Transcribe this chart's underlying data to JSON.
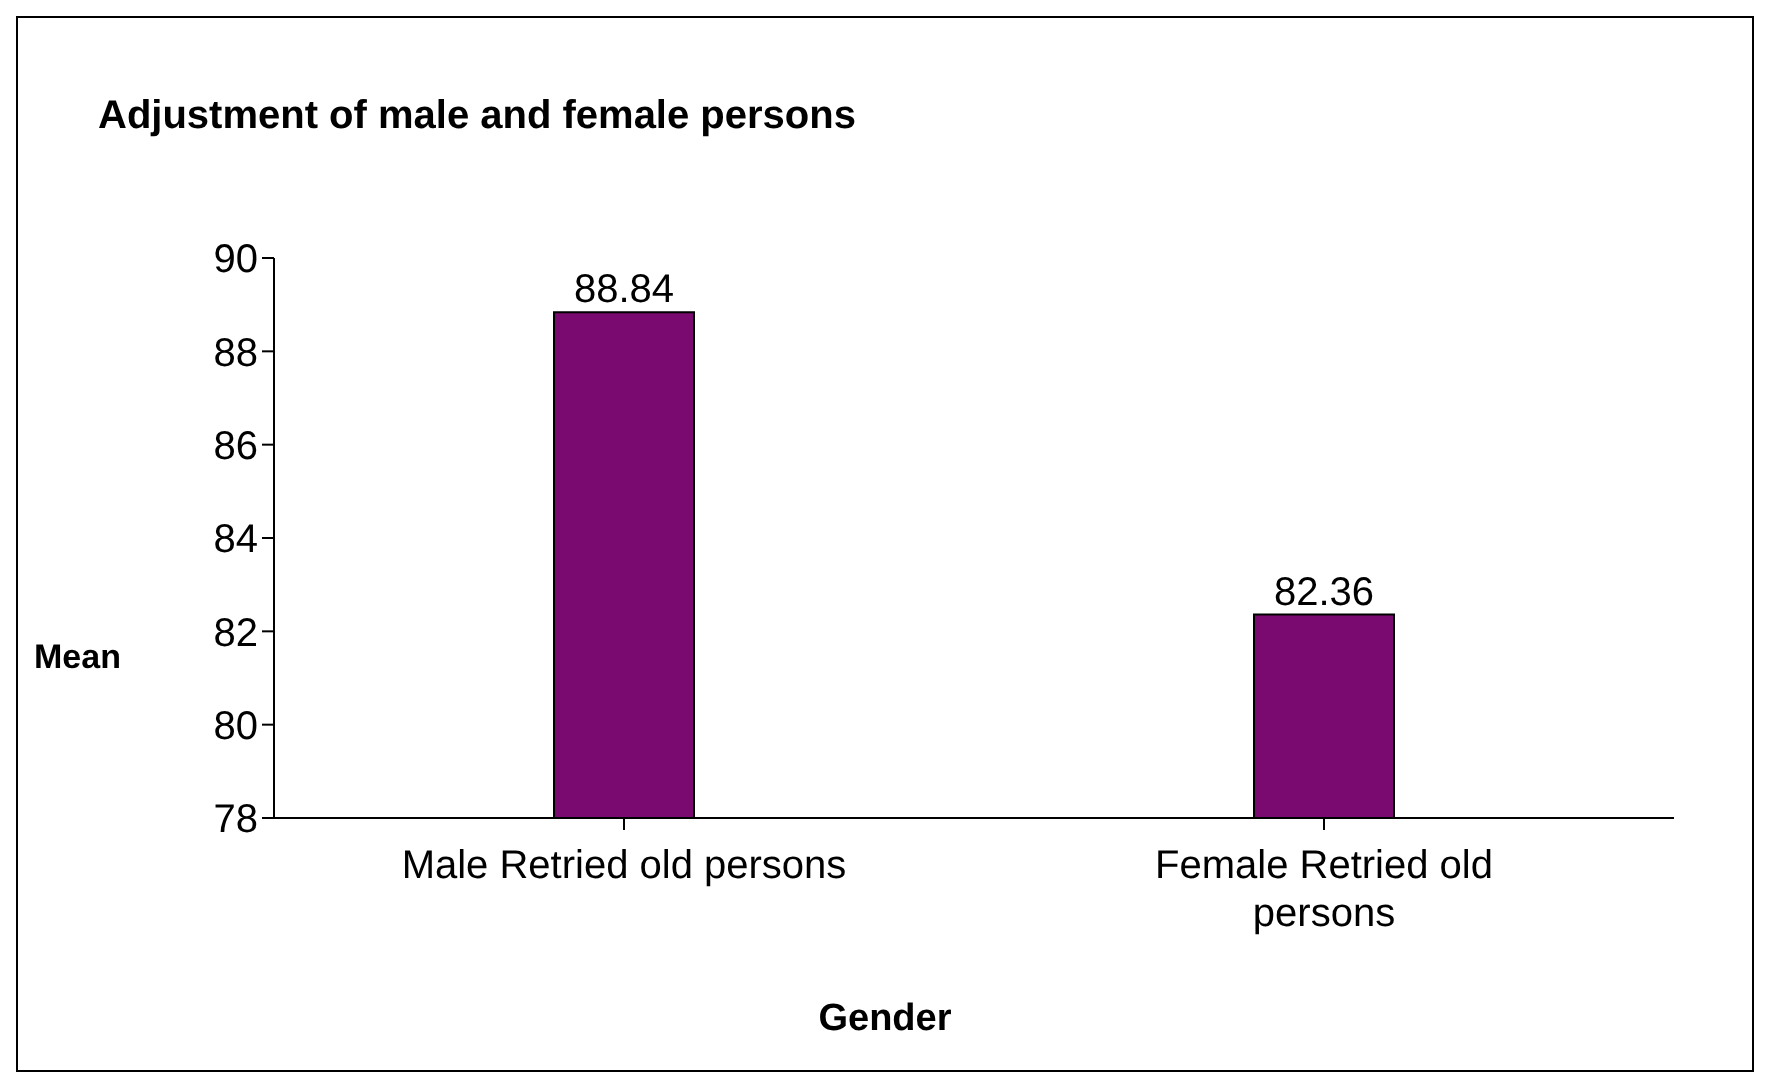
{
  "chart_data": {
    "type": "bar",
    "title": "Adjustment of male and female persons",
    "xlabel": "Gender",
    "ylabel": "Mean",
    "categories": [
      "Male Retried old persons",
      "Female Retried old persons"
    ],
    "values": [
      88.84,
      82.36
    ],
    "color": "#7a0a70",
    "ylim": [
      78,
      90
    ],
    "yticks": [
      78,
      80,
      82,
      84,
      86,
      88,
      90
    ],
    "grid": false,
    "data_labels": true
  }
}
